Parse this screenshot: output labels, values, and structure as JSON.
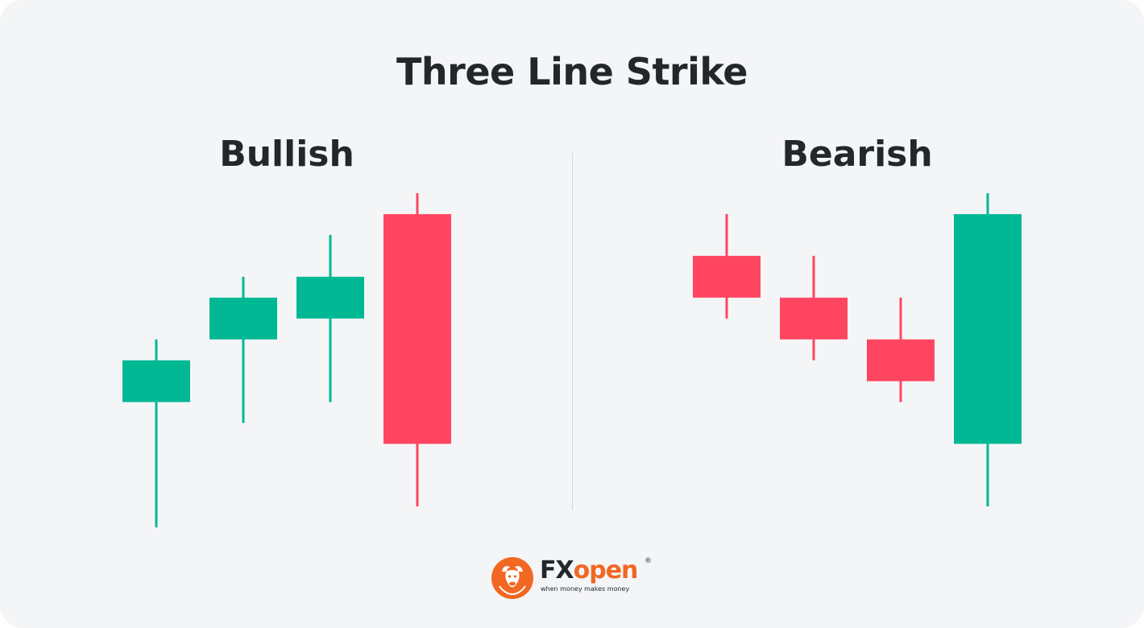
{
  "title": "Three Line Strike",
  "panels": {
    "bullish": {
      "label": "Bullish"
    },
    "bearish": {
      "label": "Bearish"
    }
  },
  "colors": {
    "bull": "#00b894",
    "bear": "#ff4560",
    "background": "#f4f5f7",
    "text": "#23272b",
    "brand": "#f26722"
  },
  "chart_data": [
    {
      "type": "candlestick",
      "title": "Bullish",
      "candles": [
        {
          "open": 4.0,
          "high": 5.5,
          "low": 1.0,
          "close": 5.0,
          "direction": "bull"
        },
        {
          "open": 5.5,
          "high": 7.0,
          "low": 3.5,
          "close": 6.5,
          "direction": "bull"
        },
        {
          "open": 6.0,
          "high": 8.0,
          "low": 4.0,
          "close": 7.0,
          "direction": "bull"
        },
        {
          "open": 8.5,
          "high": 9.0,
          "low": 1.5,
          "close": 3.0,
          "direction": "bear"
        }
      ]
    },
    {
      "type": "candlestick",
      "title": "Bearish",
      "candles": [
        {
          "open": 7.5,
          "high": 8.5,
          "low": 6.0,
          "close": 6.5,
          "direction": "bear"
        },
        {
          "open": 6.5,
          "high": 7.5,
          "low": 5.0,
          "close": 5.5,
          "direction": "bear"
        },
        {
          "open": 5.5,
          "high": 6.5,
          "low": 4.0,
          "close": 4.5,
          "direction": "bear"
        },
        {
          "open": 3.0,
          "high": 9.0,
          "low": 1.5,
          "close": 8.5,
          "direction": "bull"
        }
      ]
    }
  ],
  "logo": {
    "brand_fx": "FX",
    "brand_open": "open",
    "registered": "®",
    "tagline": "when money makes money",
    "icon": "bull-head-icon"
  }
}
